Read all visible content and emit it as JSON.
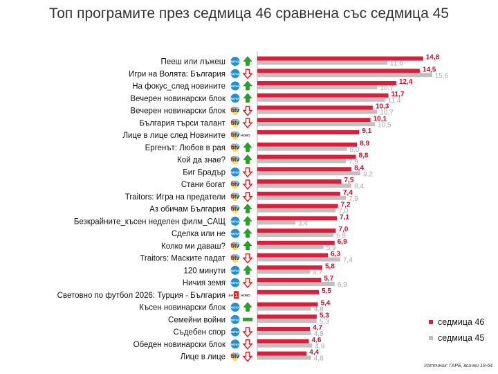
{
  "chart_data": {
    "type": "bar",
    "orientation": "horizontal",
    "title": "Топ програмите през седмица 46 сравнена със седмица 45",
    "categories": [
      "Пееш или лъжеш",
      "Игри на Волята: България",
      "На фокус_след новините",
      "Вечерен новинарски блок",
      "Вечерен новинарски блок",
      "България търси талант",
      "Лице в лице след Новините",
      "Ергенът: Любов в рая",
      "Кой да знае?",
      "Биг Брадър",
      "Стани богат",
      "Traitors: Игра на предатели",
      "Аз обичам България",
      "Безкрайните_късен неделен филм_САЩ",
      "Сделка или не",
      "Колко ми даваш?",
      "Traitors: Маските падат",
      "120 минути",
      "Ничия земя",
      "Световно по футбол 2026: Турция - България",
      "Късен новинарски блок",
      "Семейни войни",
      "Съдебен спор",
      "Обеден новинарски блок",
      "Лице в лице"
    ],
    "channels": [
      "nova",
      "nova",
      "nova",
      "nova",
      "btv",
      "btv",
      "btvnovo",
      "btv",
      "btv",
      "nova",
      "btv",
      "btv",
      "btv",
      "nova",
      "nova",
      "btv",
      "btv",
      "nova",
      "nova",
      "novo1",
      "nova",
      "nova",
      "nova",
      "nova",
      "btv"
    ],
    "trend": [
      "up",
      "down",
      "up",
      "up",
      "down",
      "down",
      "none",
      "up",
      "up",
      "down",
      "down",
      "down",
      "up",
      "up",
      "up",
      "up",
      "down",
      "up",
      "down",
      "none",
      "up",
      "same",
      "down",
      "down",
      "down"
    ],
    "series": [
      {
        "name": "седмица 46",
        "values": [
          14.8,
          14.5,
          12.4,
          11.7,
          10.3,
          10.1,
          9.1,
          8.9,
          8.8,
          8.4,
          7.5,
          7.4,
          7.2,
          7.1,
          7.0,
          6.9,
          6.3,
          5.8,
          5.7,
          5.5,
          5.4,
          5.3,
          4.7,
          4.6,
          4.4
        ],
        "labels": [
          "14,8",
          "14,5",
          "12,4",
          "11,7",
          "10,3",
          "10,1",
          "9,1",
          "8,9",
          "8,8",
          "8,4",
          "7,5",
          "7,4",
          "7,2",
          "7,1",
          "7,0",
          "6,9",
          "6,3",
          "5,8",
          "5,7",
          "5,5",
          "5,4",
          "5,3",
          "4,7",
          "4,6",
          "4,4"
        ]
      },
      {
        "name": "седмица 45",
        "values": [
          11.6,
          15.6,
          10.7,
          11.4,
          10.7,
          10.5,
          null,
          8.0,
          7.9,
          9.2,
          8.4,
          7.9,
          7.0,
          3.4,
          6.8,
          5.9,
          7.4,
          4.7,
          6.9,
          null,
          4.8,
          5.3,
          4.8,
          4.9,
          4.8
        ],
        "labels": [
          "11,6",
          "15,6",
          "10,7",
          "11,4",
          "10,7",
          "10,5",
          "",
          "8,0",
          "7,9",
          "9,2",
          "8,4",
          "7,9",
          "7,0",
          "3,4",
          "6,8",
          "5,9",
          "7,4",
          "4,7",
          "6,9",
          "",
          "4,8",
          "5,3",
          "4,8",
          "4,9",
          "4,8"
        ]
      }
    ],
    "xlim": [
      0,
      16
    ],
    "legend_position": "bottom-right",
    "grid": false
  },
  "legend": {
    "s46": "седмица 46",
    "s45": "седмица 45"
  },
  "logos": {
    "nova": "NOVA",
    "btv": "btv",
    "novo": "НОВО",
    "one": "1",
    "bet": "bet"
  },
  "colors": {
    "s46": "#e31b3a",
    "s45": "#c0c0c0",
    "up": "#1fa81f",
    "down": "#e31b1b",
    "same": "#1fa81f",
    "nova": "#1e90d6",
    "btv": "#2a2a2a"
  },
  "source": "Източник: ГАРБ, всички 18-64"
}
